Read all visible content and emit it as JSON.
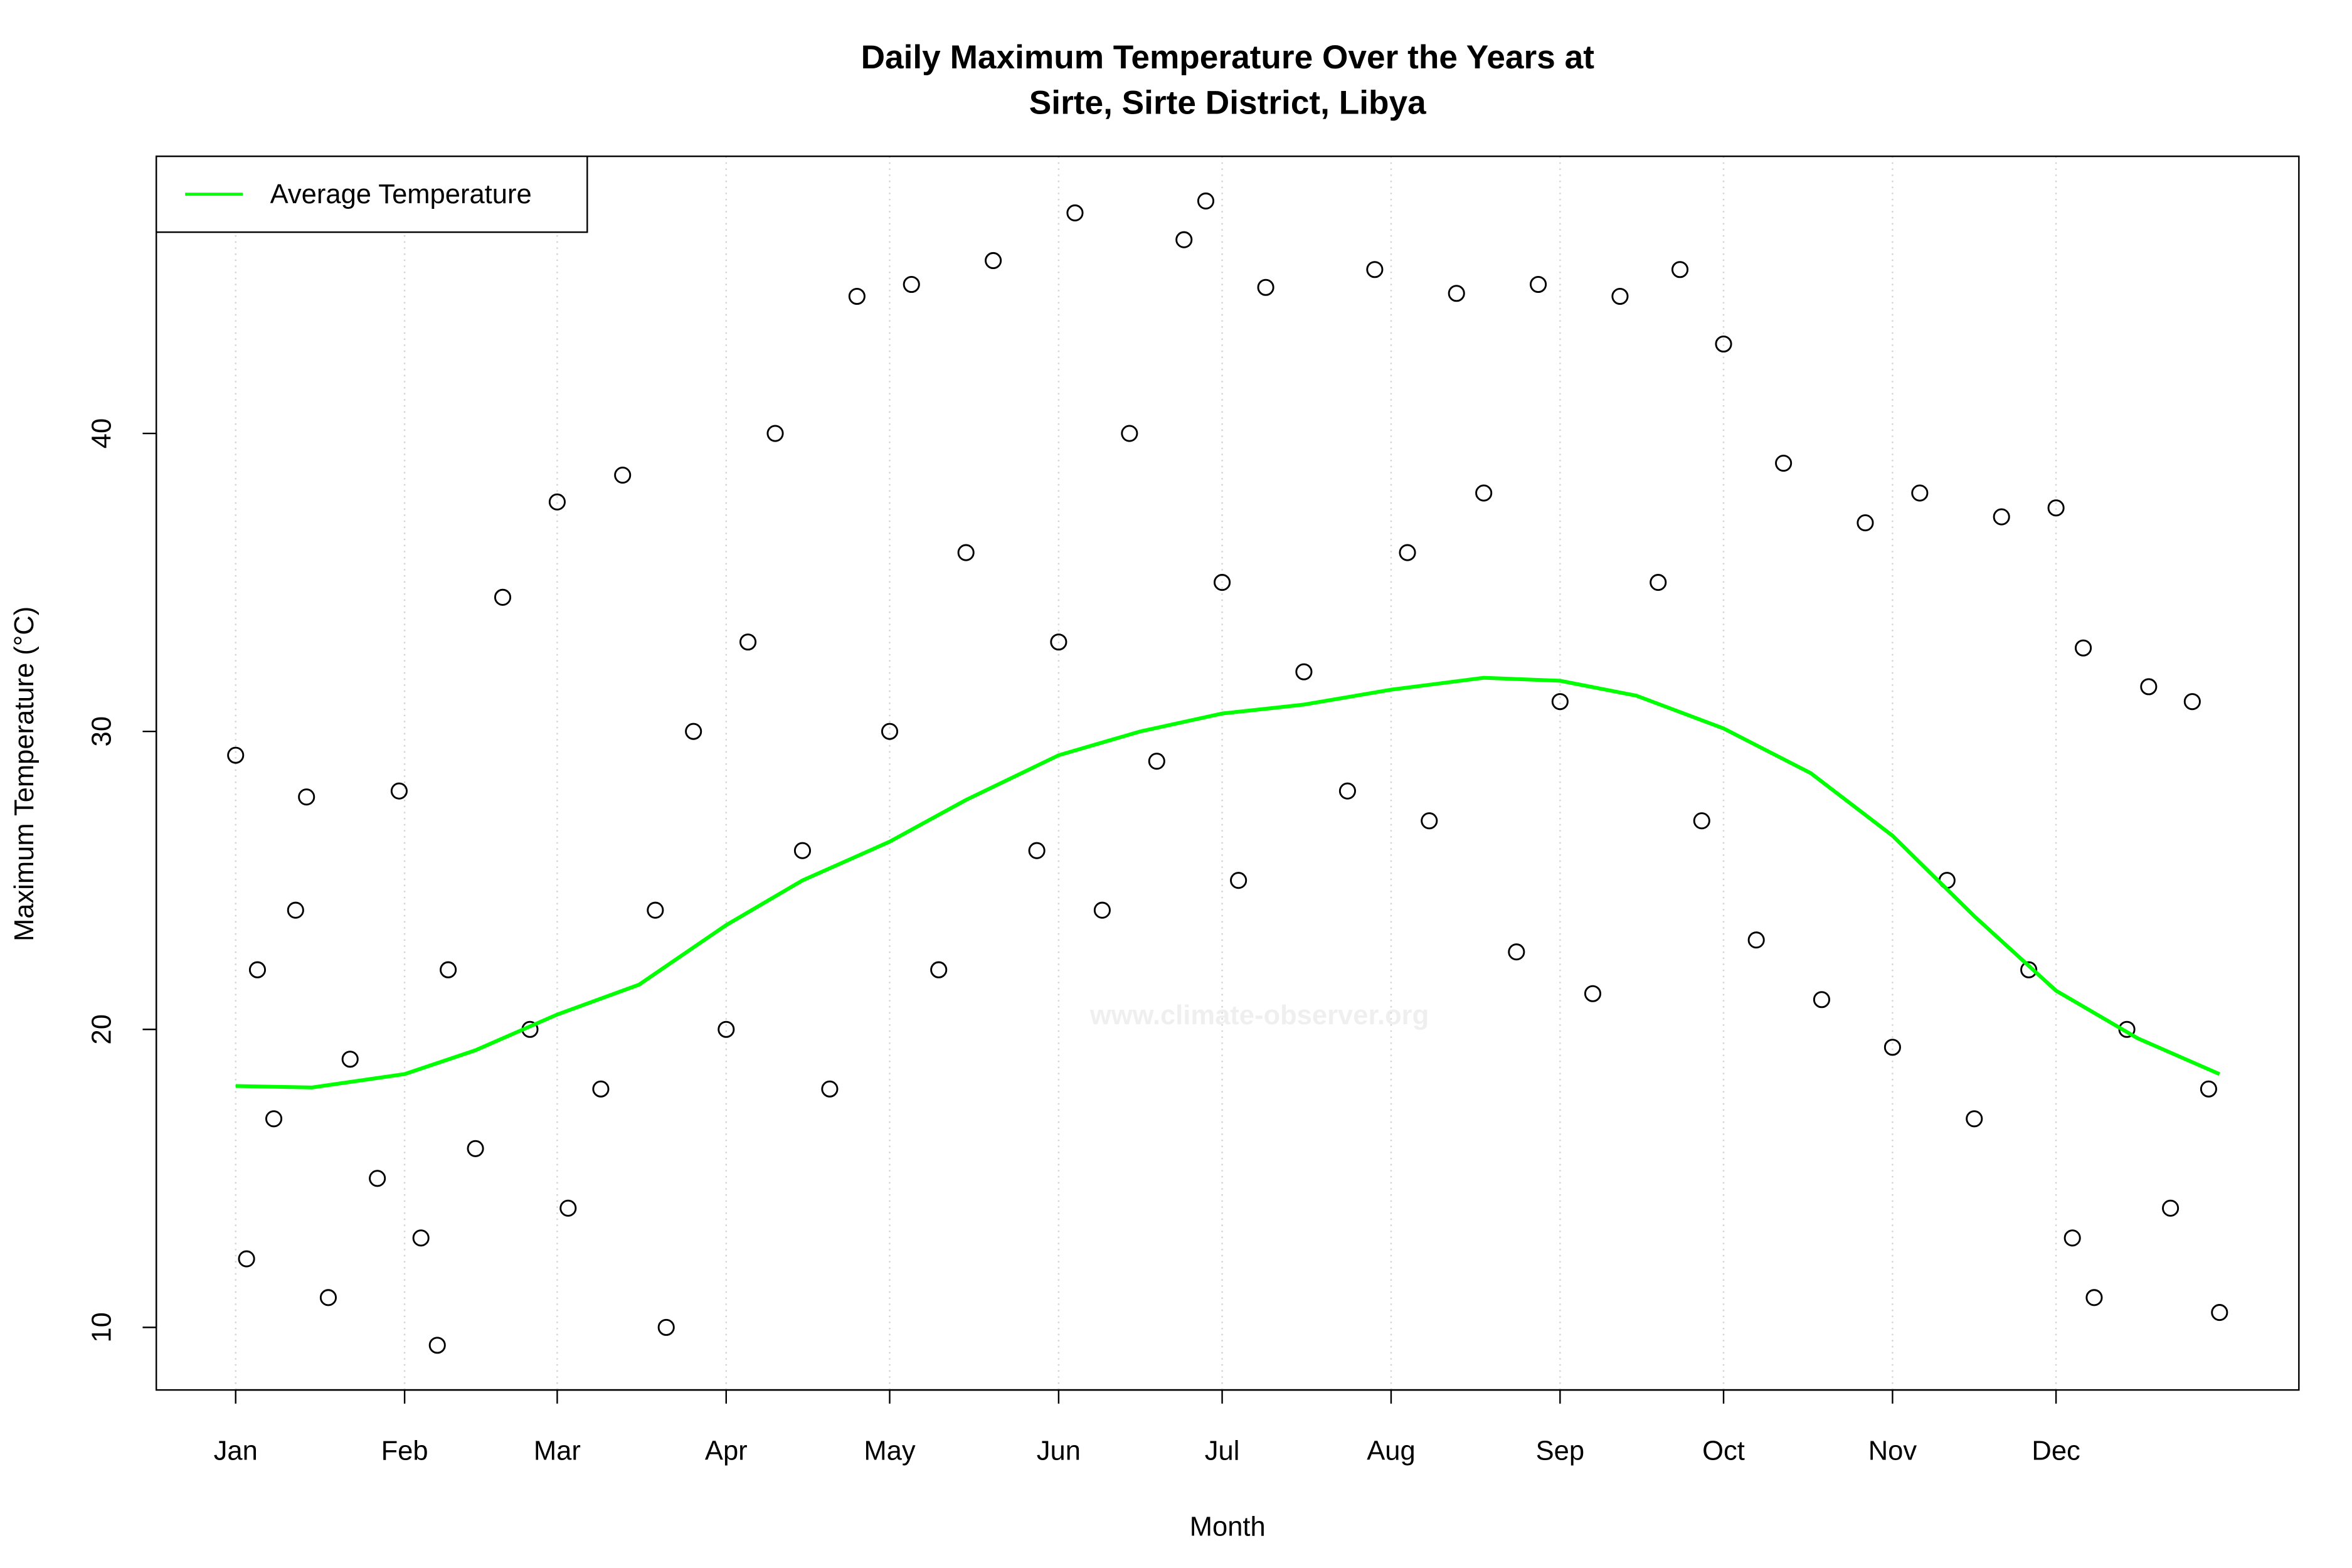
{
  "chart_data": {
    "type": "scatter",
    "title": [
      "Daily Maximum Temperature Over the Years at",
      "Sirte, Sirte District, Libya"
    ],
    "x_label": "Month",
    "y_label": "Maximum Temperature (°C)",
    "watermark": "www.climate-observer.org",
    "xlim": [
      -13.56,
      379.56
    ],
    "ylim": [
      7.9,
      49.3
    ],
    "xticks": [
      {
        "value": 1,
        "label": "Jan"
      },
      {
        "value": 32,
        "label": "Feb"
      },
      {
        "value": 60,
        "label": "Mar"
      },
      {
        "value": 91,
        "label": "Apr"
      },
      {
        "value": 121,
        "label": "May"
      },
      {
        "value": 152,
        "label": "Jun"
      },
      {
        "value": 182,
        "label": "Jul"
      },
      {
        "value": 213,
        "label": "Aug"
      },
      {
        "value": 244,
        "label": "Sep"
      },
      {
        "value": 274,
        "label": "Oct"
      },
      {
        "value": 305,
        "label": "Nov"
      },
      {
        "value": 335,
        "label": "Dec"
      }
    ],
    "yticks": [
      10,
      20,
      30,
      40
    ],
    "grid": "x",
    "legend": "top-left",
    "scatter": {
      "color": "#000000",
      "x": [
        1,
        3,
        5,
        8,
        12,
        14,
        18,
        22,
        27,
        31,
        35,
        38,
        40,
        45,
        50,
        55,
        60,
        62,
        68,
        72,
        78,
        80,
        85,
        91,
        95,
        100,
        105,
        110,
        115,
        121,
        125,
        130,
        135,
        140,
        148,
        152,
        155,
        160,
        165,
        170,
        175,
        179,
        182,
        185,
        190,
        197,
        205,
        210,
        216,
        220,
        225,
        230,
        236,
        240,
        244,
        250,
        255,
        262,
        266,
        270,
        274,
        280,
        285,
        292,
        300,
        305,
        310,
        315,
        320,
        325,
        330,
        335,
        338,
        340,
        342,
        348,
        352,
        356,
        360,
        363,
        365
      ],
      "values": [
        29.2,
        12.3,
        22,
        17,
        24,
        27.8,
        11,
        19,
        15,
        28,
        13,
        9.4,
        22,
        16,
        34.5,
        20,
        37.7,
        14,
        18,
        38.6,
        24,
        10,
        30,
        20,
        33,
        40,
        26,
        18,
        44.6,
        30,
        45,
        22,
        36,
        45.8,
        26,
        33,
        47.4,
        24,
        40,
        29,
        46.5,
        47.8,
        35,
        25,
        44.9,
        32,
        28,
        45.5,
        36,
        27,
        44.7,
        38,
        22.6,
        45,
        31,
        21.2,
        44.6,
        35,
        45.5,
        27,
        43,
        23,
        39,
        21,
        37,
        19.4,
        38,
        25,
        17,
        37.2,
        22,
        37.5,
        13,
        32.8,
        11,
        20,
        31.5,
        14,
        31,
        18,
        10.5
      ]
    },
    "series": [
      {
        "name": "Average Temperature",
        "color": "#00ff00",
        "x": [
          1,
          15,
          32,
          45,
          60,
          75,
          91,
          105,
          121,
          135,
          152,
          167,
          182,
          197,
          213,
          230,
          244,
          258,
          274,
          290,
          305,
          320,
          335,
          350,
          365
        ],
        "values": [
          18.1,
          18.05,
          18.5,
          19.3,
          20.5,
          21.5,
          23.5,
          25,
          26.3,
          27.7,
          29.2,
          30,
          30.6,
          30.9,
          31.4,
          31.8,
          31.7,
          31.2,
          30.1,
          28.6,
          26.5,
          23.8,
          21.3,
          19.7,
          18.5
        ]
      }
    ]
  }
}
